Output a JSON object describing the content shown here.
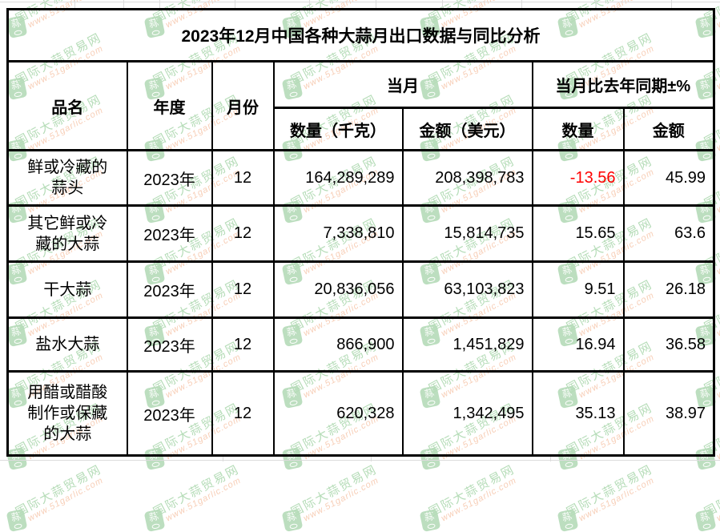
{
  "chart_data": {
    "type": "table",
    "title": "2023年12月中国各种大蒜月出口数据与同比分析",
    "header": {
      "product": "品名",
      "year": "年度",
      "month": "月份",
      "current_month_group": "当月",
      "yoy_group": "当月比去年同期±%",
      "qty_kg": "数量（千克）",
      "amount_usd": "金额（美元）",
      "qty_pct": "数量",
      "amount_pct": "金额"
    },
    "rows": [
      {
        "product": "鲜或冷藏的蒜头",
        "year": "2023年",
        "month": "12",
        "qty_kg": "164,289,289",
        "amount_usd": "208,398,783",
        "qty_pct": "-13.56",
        "amount_pct": "45.99"
      },
      {
        "product": "其它鲜或冷藏的大蒜",
        "year": "2023年",
        "month": "12",
        "qty_kg": "7,338,810",
        "amount_usd": "15,814,735",
        "qty_pct": "15.65",
        "amount_pct": "63.6"
      },
      {
        "product": "干大蒜",
        "year": "2023年",
        "month": "12",
        "qty_kg": "20,836,056",
        "amount_usd": "63,103,823",
        "qty_pct": "9.51",
        "amount_pct": "26.18"
      },
      {
        "product": "盐水大蒜",
        "year": "2023年",
        "month": "12",
        "qty_kg": "866,900",
        "amount_usd": "1,451,829",
        "qty_pct": "16.94",
        "amount_pct": "36.58"
      },
      {
        "product": "用醋或醋酸制作或保藏的大蒜",
        "year": "2023年",
        "month": "12",
        "qty_kg": "620,328",
        "amount_usd": "1,342,495",
        "qty_pct": "35.13",
        "amount_pct": "38.97"
      }
    ]
  },
  "watermark": {
    "site_name": "国际大蒜贸易网",
    "site_url": "www.51garlic.com",
    "logo_char": "蒜",
    "logo_color": "#7bbf80",
    "name_color": "#6dba72",
    "url_color": "#f09e70"
  },
  "colors": {
    "negative": "#ff0000",
    "text": "#000000",
    "border": "#000000"
  }
}
